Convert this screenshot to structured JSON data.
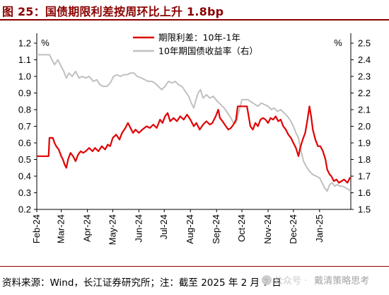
{
  "figure": {
    "title": "图 25：国债期限利差按周环比上升 1.8bp",
    "source": "资料来源：Wind，长江证券研究所；注：截至 2025 年 2 月 7 日",
    "watermark": {
      "sub": "公众号 ·",
      "name": "戴清策略思考"
    }
  },
  "colors": {
    "series_spread": "#e00000",
    "series_yield": "#c0c0c0",
    "title": "#8B0000"
  },
  "chart_data": {
    "type": "line",
    "left_unit": "%",
    "right_unit": "%",
    "x_labels": [
      "Feb-24",
      "Mar-24",
      "Apr-24",
      "May-24",
      "Jun-24",
      "Jul-24",
      "Aug-24",
      "Sep-24",
      "Oct-24",
      "Nov-24",
      "Dec-24",
      "Jan-25"
    ],
    "x_range": [
      "2024-02-01",
      "2025-02-07"
    ],
    "y_left": {
      "min": 0.2,
      "max": 1.2,
      "ticks": [
        "0.2",
        "0.3",
        "0.4",
        "0.5",
        "0.6",
        "0.7",
        "0.8",
        "0.9",
        "1.0",
        "1.1",
        "1.2"
      ]
    },
    "y_right": {
      "min": 1.5,
      "max": 2.5,
      "ticks": [
        "1.5",
        "1.6",
        "1.7",
        "1.8",
        "1.9",
        "2.0",
        "2.1",
        "2.2",
        "2.3",
        "2.4",
        "2.5"
      ]
    },
    "legend_position": "top-center",
    "series": [
      {
        "name": "期限利差：10年-1年",
        "axis": "left",
        "points": [
          [
            "2024-02-01",
            0.52
          ],
          [
            "2024-02-10",
            0.52
          ],
          [
            "2024-02-15",
            0.52
          ],
          [
            "2024-02-16",
            0.63
          ],
          [
            "2024-02-20",
            0.63
          ],
          [
            "2024-02-22",
            0.6
          ],
          [
            "2024-02-24",
            0.58
          ],
          [
            "2024-02-27",
            0.56
          ],
          [
            "2024-03-01",
            0.52
          ],
          [
            "2024-03-03",
            0.5
          ],
          [
            "2024-03-05",
            0.47
          ],
          [
            "2024-03-07",
            0.45
          ],
          [
            "2024-03-09",
            0.5
          ],
          [
            "2024-03-12",
            0.54
          ],
          [
            "2024-03-15",
            0.52
          ],
          [
            "2024-03-18",
            0.49
          ],
          [
            "2024-03-21",
            0.53
          ],
          [
            "2024-03-24",
            0.55
          ],
          [
            "2024-03-27",
            0.54
          ],
          [
            "2024-03-30",
            0.55
          ],
          [
            "2024-04-03",
            0.57
          ],
          [
            "2024-04-07",
            0.55
          ],
          [
            "2024-04-10",
            0.57
          ],
          [
            "2024-04-14",
            0.55
          ],
          [
            "2024-04-18",
            0.58
          ],
          [
            "2024-04-22",
            0.56
          ],
          [
            "2024-04-25",
            0.59
          ],
          [
            "2024-04-28",
            0.58
          ],
          [
            "2024-05-01",
            0.63
          ],
          [
            "2024-05-05",
            0.65
          ],
          [
            "2024-05-09",
            0.62
          ],
          [
            "2024-05-12",
            0.66
          ],
          [
            "2024-05-16",
            0.69
          ],
          [
            "2024-05-19",
            0.72
          ],
          [
            "2024-05-22",
            0.69
          ],
          [
            "2024-05-25",
            0.66
          ],
          [
            "2024-05-28",
            0.68
          ],
          [
            "2024-06-01",
            0.66
          ],
          [
            "2024-06-05",
            0.68
          ],
          [
            "2024-06-10",
            0.7
          ],
          [
            "2024-06-14",
            0.69
          ],
          [
            "2024-06-18",
            0.71
          ],
          [
            "2024-06-22",
            0.69
          ],
          [
            "2024-06-26",
            0.74
          ],
          [
            "2024-06-29",
            0.72
          ],
          [
            "2024-07-02",
            0.76
          ],
          [
            "2024-07-05",
            0.78
          ],
          [
            "2024-07-08",
            0.73
          ],
          [
            "2024-07-12",
            0.75
          ],
          [
            "2024-07-16",
            0.73
          ],
          [
            "2024-07-20",
            0.76
          ],
          [
            "2024-07-24",
            0.74
          ],
          [
            "2024-07-28",
            0.77
          ],
          [
            "2024-08-01",
            0.74
          ],
          [
            "2024-08-05",
            0.7
          ],
          [
            "2024-08-08",
            0.72
          ],
          [
            "2024-08-12",
            0.68
          ],
          [
            "2024-08-16",
            0.71
          ],
          [
            "2024-08-20",
            0.73
          ],
          [
            "2024-08-24",
            0.71
          ],
          [
            "2024-08-27",
            0.72
          ],
          [
            "2024-08-31",
            0.76
          ],
          [
            "2024-09-03",
            0.8
          ],
          [
            "2024-09-05",
            0.75
          ],
          [
            "2024-09-08",
            0.73
          ],
          [
            "2024-09-12",
            0.7
          ],
          [
            "2024-09-15",
            0.68
          ],
          [
            "2024-09-18",
            0.69
          ],
          [
            "2024-09-21",
            0.71
          ],
          [
            "2024-09-24",
            0.74
          ],
          [
            "2024-09-26",
            0.82
          ],
          [
            "2024-09-28",
            0.82
          ],
          [
            "2024-10-01",
            0.82
          ],
          [
            "2024-10-04",
            0.82
          ],
          [
            "2024-10-07",
            0.82
          ],
          [
            "2024-10-09",
            0.76
          ],
          [
            "2024-10-11",
            0.7
          ],
          [
            "2024-10-14",
            0.68
          ],
          [
            "2024-10-17",
            0.72
          ],
          [
            "2024-10-20",
            0.7
          ],
          [
            "2024-10-23",
            0.74
          ],
          [
            "2024-10-26",
            0.75
          ],
          [
            "2024-10-29",
            0.74
          ],
          [
            "2024-11-01",
            0.72
          ],
          [
            "2024-11-04",
            0.75
          ],
          [
            "2024-11-07",
            0.74
          ],
          [
            "2024-11-10",
            0.76
          ],
          [
            "2024-11-13",
            0.73
          ],
          [
            "2024-11-16",
            0.74
          ],
          [
            "2024-11-19",
            0.7
          ],
          [
            "2024-11-22",
            0.68
          ],
          [
            "2024-11-25",
            0.65
          ],
          [
            "2024-11-28",
            0.63
          ],
          [
            "2024-12-01",
            0.6
          ],
          [
            "2024-12-04",
            0.57
          ],
          [
            "2024-12-07",
            0.52
          ],
          [
            "2024-12-09",
            0.57
          ],
          [
            "2024-12-12",
            0.62
          ],
          [
            "2024-12-15",
            0.66
          ],
          [
            "2024-12-18",
            0.75
          ],
          [
            "2024-12-20",
            0.82
          ],
          [
            "2024-12-22",
            0.76
          ],
          [
            "2024-12-24",
            0.68
          ],
          [
            "2024-12-27",
            0.62
          ],
          [
            "2024-12-30",
            0.58
          ],
          [
            "2025-01-02",
            0.58
          ],
          [
            "2025-01-05",
            0.55
          ],
          [
            "2025-01-08",
            0.5
          ],
          [
            "2025-01-10",
            0.44
          ],
          [
            "2025-01-13",
            0.41
          ],
          [
            "2025-01-15",
            0.4
          ],
          [
            "2025-01-18",
            0.37
          ],
          [
            "2025-01-21",
            0.38
          ],
          [
            "2025-01-24",
            0.36
          ],
          [
            "2025-01-27",
            0.37
          ],
          [
            "2025-01-30",
            0.38
          ],
          [
            "2025-02-03",
            0.36
          ],
          [
            "2025-02-06",
            0.39
          ],
          [
            "2025-02-07",
            0.39
          ]
        ]
      },
      {
        "name": "10年期国债收益率（右）",
        "axis": "right",
        "points": [
          [
            "2024-02-01",
            2.43
          ],
          [
            "2024-02-10",
            2.43
          ],
          [
            "2024-02-16",
            2.43
          ],
          [
            "2024-02-19",
            2.4
          ],
          [
            "2024-02-22",
            2.37
          ],
          [
            "2024-02-26",
            2.4
          ],
          [
            "2024-03-01",
            2.36
          ],
          [
            "2024-03-04",
            2.33
          ],
          [
            "2024-03-07",
            2.29
          ],
          [
            "2024-03-10",
            2.32
          ],
          [
            "2024-03-14",
            2.3
          ],
          [
            "2024-03-18",
            2.33
          ],
          [
            "2024-03-22",
            2.29
          ],
          [
            "2024-03-26",
            2.3
          ],
          [
            "2024-03-30",
            2.29
          ],
          [
            "2024-04-03",
            2.3
          ],
          [
            "2024-04-08",
            2.27
          ],
          [
            "2024-04-12",
            2.28
          ],
          [
            "2024-04-16",
            2.25
          ],
          [
            "2024-04-20",
            2.24
          ],
          [
            "2024-04-24",
            2.24
          ],
          [
            "2024-04-28",
            2.26
          ],
          [
            "2024-05-02",
            2.3
          ],
          [
            "2024-05-06",
            2.31
          ],
          [
            "2024-05-10",
            2.3
          ],
          [
            "2024-05-14",
            2.31
          ],
          [
            "2024-05-18",
            2.31
          ],
          [
            "2024-05-22",
            2.32
          ],
          [
            "2024-05-26",
            2.32
          ],
          [
            "2024-05-30",
            2.3
          ],
          [
            "2024-06-04",
            2.29
          ],
          [
            "2024-06-08",
            2.28
          ],
          [
            "2024-06-12",
            2.27
          ],
          [
            "2024-06-16",
            2.27
          ],
          [
            "2024-06-20",
            2.26
          ],
          [
            "2024-06-24",
            2.24
          ],
          [
            "2024-06-28",
            2.22
          ],
          [
            "2024-07-02",
            2.24
          ],
          [
            "2024-07-06",
            2.27
          ],
          [
            "2024-07-10",
            2.26
          ],
          [
            "2024-07-14",
            2.27
          ],
          [
            "2024-07-18",
            2.25
          ],
          [
            "2024-07-22",
            2.24
          ],
          [
            "2024-07-26",
            2.21
          ],
          [
            "2024-07-30",
            2.18
          ],
          [
            "2024-08-02",
            2.14
          ],
          [
            "2024-08-05",
            2.11
          ],
          [
            "2024-08-07",
            2.15
          ],
          [
            "2024-08-10",
            2.2
          ],
          [
            "2024-08-13",
            2.22
          ],
          [
            "2024-08-16",
            2.17
          ],
          [
            "2024-08-20",
            2.19
          ],
          [
            "2024-08-24",
            2.17
          ],
          [
            "2024-08-28",
            2.18
          ],
          [
            "2024-09-02",
            2.15
          ],
          [
            "2024-09-06",
            2.13
          ],
          [
            "2024-09-10",
            2.11
          ],
          [
            "2024-09-14",
            2.08
          ],
          [
            "2024-09-18",
            2.05
          ],
          [
            "2024-09-21",
            2.02
          ],
          [
            "2024-09-24",
            2.02
          ],
          [
            "2024-09-26",
            2.06
          ],
          [
            "2024-09-29",
            2.12
          ],
          [
            "2024-10-01",
            2.16
          ],
          [
            "2024-10-05",
            2.16
          ],
          [
            "2024-10-08",
            2.16
          ],
          [
            "2024-10-11",
            2.15
          ],
          [
            "2024-10-14",
            2.14
          ],
          [
            "2024-10-17",
            2.13
          ],
          [
            "2024-10-20",
            2.12
          ],
          [
            "2024-10-24",
            2.14
          ],
          [
            "2024-10-28",
            2.13
          ],
          [
            "2024-11-01",
            2.12
          ],
          [
            "2024-11-05",
            2.1
          ],
          [
            "2024-11-08",
            2.11
          ],
          [
            "2024-11-12",
            2.09
          ],
          [
            "2024-11-16",
            2.1
          ],
          [
            "2024-11-20",
            2.08
          ],
          [
            "2024-11-24",
            2.06
          ],
          [
            "2024-11-28",
            2.03
          ],
          [
            "2024-12-01",
            2.0
          ],
          [
            "2024-12-04",
            1.96
          ],
          [
            "2024-12-07",
            1.93
          ],
          [
            "2024-12-10",
            1.85
          ],
          [
            "2024-12-13",
            1.79
          ],
          [
            "2024-12-16",
            1.76
          ],
          [
            "2024-12-20",
            1.73
          ],
          [
            "2024-12-24",
            1.71
          ],
          [
            "2024-12-28",
            1.7
          ],
          [
            "2025-01-01",
            1.69
          ],
          [
            "2025-01-04",
            1.66
          ],
          [
            "2025-01-07",
            1.63
          ],
          [
            "2025-01-10",
            1.61
          ],
          [
            "2025-01-13",
            1.65
          ],
          [
            "2025-01-16",
            1.66
          ],
          [
            "2025-01-19",
            1.64
          ],
          [
            "2025-01-22",
            1.65
          ],
          [
            "2025-01-25",
            1.64
          ],
          [
            "2025-01-28",
            1.64
          ],
          [
            "2025-02-01",
            1.63
          ],
          [
            "2025-02-04",
            1.62
          ],
          [
            "2025-02-07",
            1.61
          ]
        ]
      }
    ]
  }
}
